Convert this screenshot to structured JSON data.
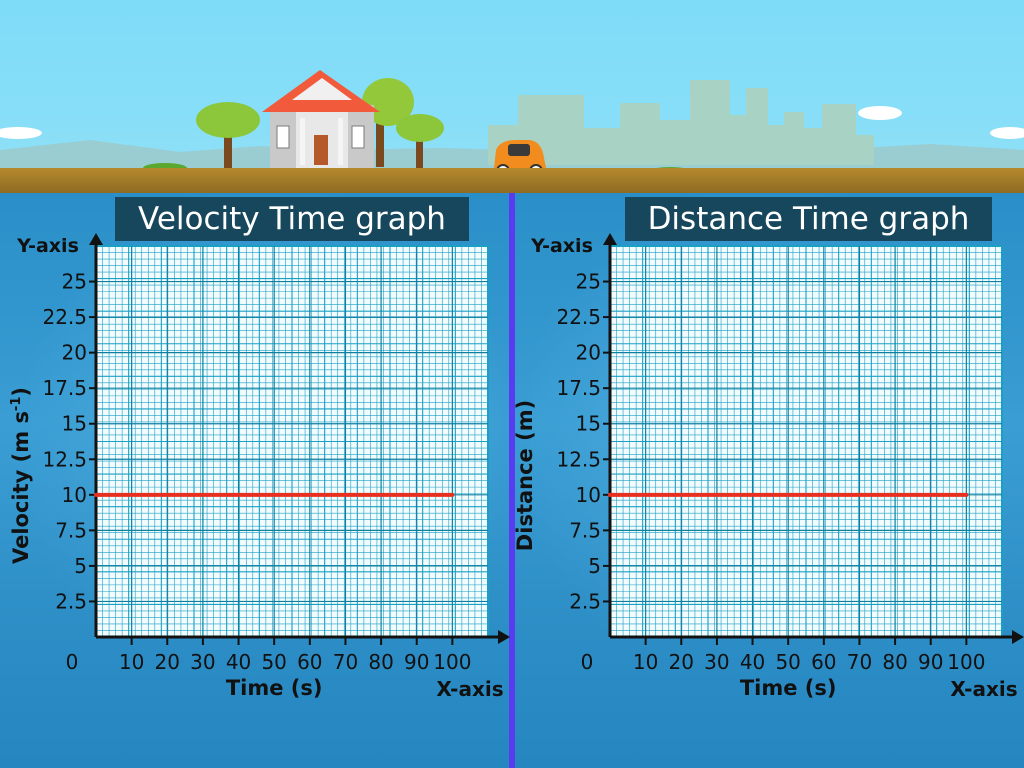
{
  "scene_icons": [
    "house-icon",
    "tree-icon",
    "car-icon",
    "city-skyline-icon",
    "cloud-icon"
  ],
  "colors": {
    "sky": "#84def8",
    "water": "#2a8ec8",
    "ground": "#a07a28",
    "title_bg": "#16475c",
    "grid_line": "#1aa0c4",
    "grid_bg": "#f2fbfd",
    "data_line": "#e83020",
    "divider": "#5a3cf0",
    "axis": "#111111"
  },
  "chart_data": [
    {
      "type": "line",
      "title": "Velocity Time graph",
      "xlabel": "Time (s)",
      "ylabel": "Velocity (m s-1)",
      "ylabel_main": "Velocity (m s",
      "ylabel_sup": "-1",
      "ylabel_close": ")",
      "x_axis_name": "X-axis",
      "y_axis_name": "Y-axis",
      "origin_label": "0",
      "xlim": [
        0,
        110
      ],
      "ylim": [
        0,
        27.5
      ],
      "x_ticks": [
        10,
        20,
        30,
        40,
        50,
        60,
        70,
        80,
        90,
        100
      ],
      "x_tick_labels": [
        "10",
        "20",
        "30",
        "40",
        "50",
        "60",
        "70",
        "80",
        "90",
        "100"
      ],
      "y_ticks": [
        2.5,
        5,
        7.5,
        10,
        12.5,
        15,
        17.5,
        20,
        22.5,
        25
      ],
      "y_tick_labels": [
        "2.5",
        "5",
        "7.5",
        "10",
        "12.5",
        "15",
        "17.5",
        "20",
        "22.5",
        "25"
      ],
      "grid": true,
      "series": [
        {
          "x": [
            0,
            100
          ],
          "y": [
            10,
            10
          ]
        }
      ]
    },
    {
      "type": "line",
      "title": "Distance Time graph",
      "xlabel": "Time (s)",
      "ylabel": "Distance (m)",
      "x_axis_name": "X-axis",
      "y_axis_name": "Y-axis",
      "origin_label": "0",
      "xlim": [
        0,
        110
      ],
      "ylim": [
        0,
        27.5
      ],
      "x_ticks": [
        10,
        20,
        30,
        40,
        50,
        60,
        70,
        80,
        90,
        100
      ],
      "x_tick_labels": [
        "10",
        "20",
        "30",
        "40",
        "50",
        "60",
        "70",
        "80",
        "90",
        "100"
      ],
      "y_ticks": [
        2.5,
        5,
        7.5,
        10,
        12.5,
        15,
        17.5,
        20,
        22.5,
        25
      ],
      "y_tick_labels": [
        "2.5",
        "5",
        "7.5",
        "10",
        "12.5",
        "15",
        "17.5",
        "20",
        "22.5",
        "25"
      ],
      "grid": true,
      "series": [
        {
          "x": [
            0,
            100
          ],
          "y": [
            10,
            10
          ]
        }
      ]
    }
  ]
}
